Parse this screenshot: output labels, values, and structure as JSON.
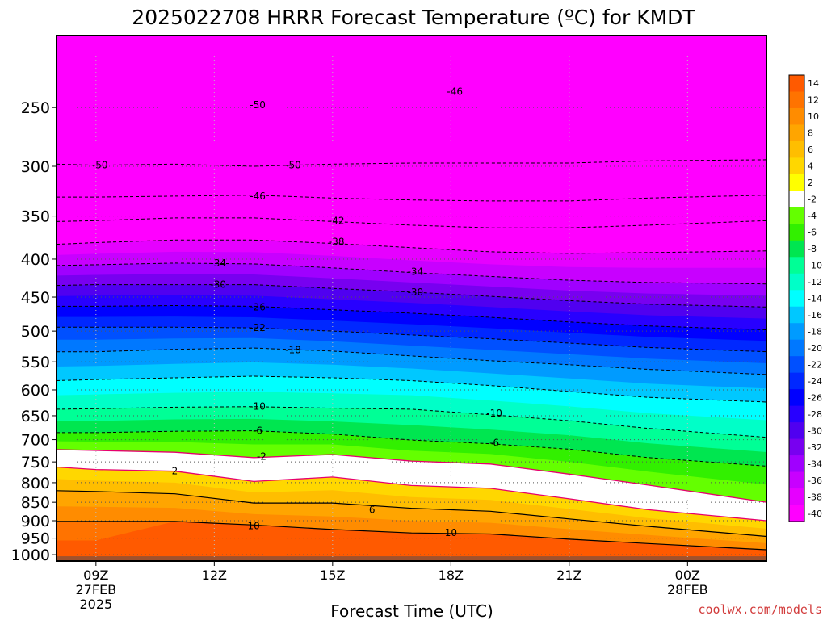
{
  "chart_data": {
    "type": "heatmap",
    "title": "2025022708 HRRR Forecast Temperature (ºC) for KMDT",
    "xlabel": "Forecast Time (UTC)",
    "ylabel": "",
    "credit": "coolwx.com/models",
    "x_unit": "forecast hour from 2025-02-27 08Z",
    "x_range": [
      8,
      26
    ],
    "y_unit": "pressure (hPa)",
    "y_range": [
      1020,
      200
    ],
    "y_scale": "log",
    "x_ticks": [
      {
        "label": "09Z",
        "date": "27FEB",
        "year": "2025",
        "value": 9
      },
      {
        "label": "12Z",
        "date": "",
        "year": "",
        "value": 12
      },
      {
        "label": "15Z",
        "date": "",
        "year": "",
        "value": 15
      },
      {
        "label": "18Z",
        "date": "",
        "year": "",
        "value": 18
      },
      {
        "label": "21Z",
        "date": "",
        "year": "",
        "value": 21
      },
      {
        "label": "00Z",
        "date": "28FEB",
        "year": "",
        "value": 24
      }
    ],
    "y_ticks": [
      "250",
      "300",
      "350",
      "400",
      "450",
      "500",
      "550",
      "600",
      "650",
      "700",
      "750",
      "800",
      "850",
      "900",
      "950",
      "1000"
    ],
    "ground_level_hPa": 1000,
    "isotherms": [
      {
        "level": -50,
        "points": [
          [
            8,
            298
          ],
          [
            9,
            299
          ],
          [
            11,
            298
          ],
          [
            13,
            300
          ],
          [
            15,
            298
          ],
          [
            17,
            297
          ],
          [
            19,
            297
          ],
          [
            21,
            297
          ],
          [
            23,
            295
          ],
          [
            26,
            294
          ]
        ]
      },
      {
        "level": -46,
        "points": [
          [
            8,
            330
          ],
          [
            9,
            330
          ],
          [
            11,
            329
          ],
          [
            13,
            328
          ],
          [
            15,
            331
          ],
          [
            17,
            333
          ],
          [
            19,
            334
          ],
          [
            21,
            334
          ],
          [
            23,
            331
          ],
          [
            26,
            328
          ]
        ]
      },
      {
        "level": -42,
        "points": [
          [
            8,
            356
          ],
          [
            9,
            355
          ],
          [
            11,
            352
          ],
          [
            13,
            352
          ],
          [
            15,
            356
          ],
          [
            17,
            360
          ],
          [
            19,
            363
          ],
          [
            21,
            363
          ],
          [
            23,
            360
          ],
          [
            26,
            355
          ]
        ]
      },
      {
        "level": -38,
        "points": [
          [
            8,
            382
          ],
          [
            9,
            380
          ],
          [
            11,
            377
          ],
          [
            13,
            377
          ],
          [
            15,
            381
          ],
          [
            17,
            386
          ],
          [
            19,
            391
          ],
          [
            21,
            393
          ],
          [
            23,
            392
          ],
          [
            26,
            390
          ]
        ]
      },
      {
        "level": -34,
        "points": [
          [
            8,
            408
          ],
          [
            9,
            407
          ],
          [
            11,
            405
          ],
          [
            13,
            406
          ],
          [
            15,
            411
          ],
          [
            17,
            417
          ],
          [
            19,
            422
          ],
          [
            21,
            427
          ],
          [
            23,
            430
          ],
          [
            26,
            432
          ]
        ]
      },
      {
        "level": -30,
        "points": [
          [
            8,
            434
          ],
          [
            9,
            433
          ],
          [
            11,
            433
          ],
          [
            13,
            433
          ],
          [
            15,
            438
          ],
          [
            17,
            443
          ],
          [
            19,
            449
          ],
          [
            21,
            455
          ],
          [
            23,
            460
          ],
          [
            26,
            464
          ]
        ]
      },
      {
        "level": -26,
        "points": [
          [
            8,
            463
          ],
          [
            9,
            463
          ],
          [
            11,
            462
          ],
          [
            13,
            463
          ],
          [
            15,
            468
          ],
          [
            17,
            473
          ],
          [
            19,
            479
          ],
          [
            21,
            486
          ],
          [
            23,
            492
          ],
          [
            26,
            498
          ]
        ]
      },
      {
        "level": -22,
        "points": [
          [
            8,
            494
          ],
          [
            9,
            494
          ],
          [
            11,
            494
          ],
          [
            13,
            495
          ],
          [
            15,
            500
          ],
          [
            17,
            506
          ],
          [
            19,
            512
          ],
          [
            21,
            519
          ],
          [
            23,
            526
          ],
          [
            26,
            533
          ]
        ]
      },
      {
        "level": -18,
        "points": [
          [
            8,
            533
          ],
          [
            9,
            533
          ],
          [
            11,
            529
          ],
          [
            13,
            527
          ],
          [
            15,
            532
          ],
          [
            17,
            540
          ],
          [
            19,
            548
          ],
          [
            21,
            555
          ],
          [
            23,
            563
          ],
          [
            26,
            572
          ]
        ]
      },
      {
        "level": -14,
        "points": [
          [
            8,
            583
          ],
          [
            9,
            581
          ],
          [
            11,
            578
          ],
          [
            13,
            575
          ],
          [
            15,
            578
          ],
          [
            17,
            583
          ],
          [
            19,
            592
          ],
          [
            21,
            603
          ],
          [
            23,
            614
          ],
          [
            26,
            623
          ]
        ]
      },
      {
        "level": -10,
        "points": [
          [
            8,
            637
          ],
          [
            9,
            636
          ],
          [
            11,
            633
          ],
          [
            13,
            632
          ],
          [
            15,
            635
          ],
          [
            17,
            637
          ],
          [
            19,
            648
          ],
          [
            21,
            660
          ],
          [
            23,
            676
          ],
          [
            26,
            695
          ]
        ]
      },
      {
        "level": -6,
        "points": [
          [
            8,
            685
          ],
          [
            9,
            685
          ],
          [
            11,
            682
          ],
          [
            13,
            681
          ],
          [
            15,
            688
          ],
          [
            17,
            701
          ],
          [
            19,
            709
          ],
          [
            21,
            721
          ],
          [
            23,
            740
          ],
          [
            26,
            760
          ]
        ]
      },
      {
        "level": -2,
        "points": [
          [
            8,
            722
          ],
          [
            9,
            724
          ],
          [
            11,
            728
          ],
          [
            13,
            740
          ],
          [
            15,
            733
          ],
          [
            17,
            748
          ],
          [
            19,
            755
          ],
          [
            21,
            779
          ],
          [
            23,
            806
          ],
          [
            26,
            850
          ]
        ]
      },
      {
        "level": 2,
        "points": [
          [
            8,
            762
          ],
          [
            9,
            768
          ],
          [
            11,
            772
          ],
          [
            13,
            797
          ],
          [
            15,
            786
          ],
          [
            17,
            807
          ],
          [
            19,
            814
          ],
          [
            21,
            841
          ],
          [
            23,
            870
          ],
          [
            26,
            900
          ]
        ]
      },
      {
        "level": 6,
        "points": [
          [
            8,
            820
          ],
          [
            9,
            822
          ],
          [
            11,
            828
          ],
          [
            13,
            852
          ],
          [
            15,
            852
          ],
          [
            17,
            866
          ],
          [
            19,
            874
          ],
          [
            21,
            895
          ],
          [
            23,
            916
          ],
          [
            26,
            945
          ]
        ]
      },
      {
        "level": 10,
        "points": [
          [
            8,
            902
          ],
          [
            9,
            902
          ],
          [
            11,
            902
          ],
          [
            13,
            912
          ],
          [
            15,
            925
          ],
          [
            17,
            935
          ],
          [
            19,
            938
          ],
          [
            21,
            953
          ],
          [
            23,
            966
          ],
          [
            26,
            985
          ]
        ]
      },
      {
        "level": 14,
        "points": [
          [
            8,
            1012
          ],
          [
            26,
            1012
          ]
        ]
      }
    ],
    "contour_labels": [
      {
        "text": "-50",
        "x": 13.1,
        "y": 248
      },
      {
        "text": "-46",
        "x": 18.1,
        "y": 238
      },
      {
        "text": "-50",
        "x": 9.1,
        "y": 299
      },
      {
        "text": "-50",
        "x": 14.0,
        "y": 299
      },
      {
        "text": "-46",
        "x": 13.1,
        "y": 329
      },
      {
        "text": "-42",
        "x": 15.1,
        "y": 355
      },
      {
        "text": "-38",
        "x": 15.1,
        "y": 379
      },
      {
        "text": "-34",
        "x": 12.1,
        "y": 405
      },
      {
        "text": "-34",
        "x": 17.1,
        "y": 416
      },
      {
        "text": "-30",
        "x": 12.1,
        "y": 433
      },
      {
        "text": "-30",
        "x": 17.1,
        "y": 443
      },
      {
        "text": "-26",
        "x": 13.1,
        "y": 464
      },
      {
        "text": "-22",
        "x": 13.1,
        "y": 495
      },
      {
        "text": "-18",
        "x": 14.0,
        "y": 530
      },
      {
        "text": "-10",
        "x": 13.1,
        "y": 632
      },
      {
        "text": "-10",
        "x": 19.1,
        "y": 645
      },
      {
        "text": "-6",
        "x": 13.1,
        "y": 681
      },
      {
        "text": "-6",
        "x": 19.1,
        "y": 707
      },
      {
        "text": "-2",
        "x": 13.2,
        "y": 738
      },
      {
        "text": "2",
        "x": 11.0,
        "y": 772
      },
      {
        "text": "6",
        "x": 16.0,
        "y": 870
      },
      {
        "text": "10",
        "x": 13.0,
        "y": 915
      },
      {
        "text": "10",
        "x": 18.0,
        "y": 935
      }
    ],
    "colorbar": {
      "labels": [
        "14",
        "12",
        "10",
        "8",
        "6",
        "4",
        "2",
        "-2",
        "-4",
        "-6",
        "-8",
        "-10",
        "-12",
        "-14",
        "-16",
        "-18",
        "-20",
        "-22",
        "-24",
        "-26",
        "-28",
        "-30",
        "-32",
        "-34",
        "-36",
        "-38",
        "-40"
      ],
      "colors": [
        "#ff5a00",
        "#ff7300",
        "#ff8c00",
        "#ffa500",
        "#ffbe00",
        "#ffd700",
        "#ffff00",
        "#ffffff",
        "#64ff00",
        "#32f000",
        "#00e650",
        "#00ff96",
        "#00ffc8",
        "#00ffff",
        "#00c8ff",
        "#009bff",
        "#0078ff",
        "#0050ff",
        "#0028ff",
        "#0000ff",
        "#2800ff",
        "#5000f0",
        "#7800f0",
        "#a000ff",
        "#c800ff",
        "#e600ff",
        "#ff00ff"
      ]
    },
    "colors": {
      "cold_fill": "#ff00ff",
      "ground": "#a0522d",
      "freezing_line": "#e6006e",
      "credit": "#d23c3c"
    }
  }
}
